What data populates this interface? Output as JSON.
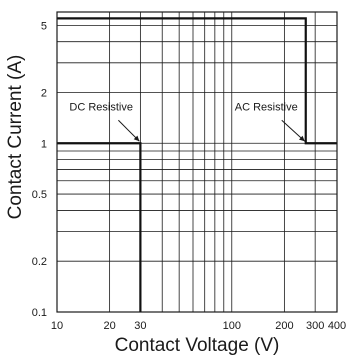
{
  "chart_data": {
    "type": "line",
    "xlabel": "Contact Voltage (V)",
    "ylabel": "Contact Current (A)",
    "x_scale": "log",
    "y_scale": "log",
    "xlim": [
      10,
      400
    ],
    "ylim": [
      0.1,
      6
    ],
    "x_ticks": [
      10,
      20,
      30,
      100,
      200,
      300,
      400
    ],
    "x_tick_labels": [
      "10",
      "20",
      "30",
      "100",
      "200",
      "300",
      "400"
    ],
    "y_ticks": [
      0.1,
      0.2,
      0.5,
      1,
      2,
      5
    ],
    "y_tick_labels": [
      "0.1",
      "0.2",
      "0.5",
      "1",
      "2",
      "5"
    ],
    "grid": true,
    "series": [
      {
        "name": "DC Resistive",
        "x": [
          30,
          30,
          10
        ],
        "y": [
          0.1,
          1,
          1
        ]
      },
      {
        "name": "AC Resistive",
        "x": [
          10,
          265,
          265,
          400
        ],
        "y": [
          5.5,
          5.5,
          1,
          1
        ]
      }
    ],
    "annotations": [
      {
        "text": "DC Resistive",
        "x": 30,
        "y": 1
      },
      {
        "text": "AC Resistive",
        "x": 265,
        "y": 1
      }
    ]
  }
}
